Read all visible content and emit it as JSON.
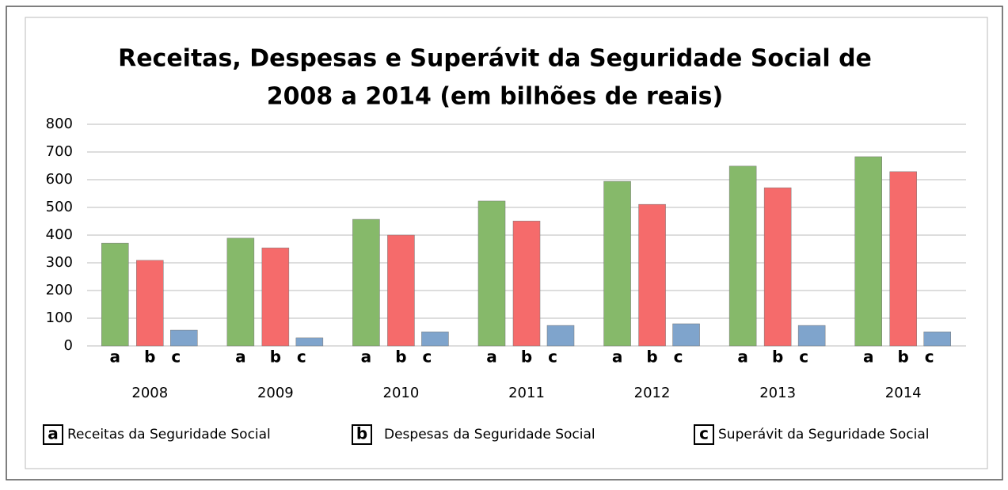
{
  "chart_data": {
    "type": "bar",
    "title": [
      "Receitas, Despesas e Superávit da Seguridade Social de",
      "2008 a 2014 (em bilhões de reais)"
    ],
    "categories": [
      "2008",
      "2009",
      "2010",
      "2011",
      "2012",
      "2013",
      "2014"
    ],
    "series": [
      {
        "name": "Receitas da Seguridade Social",
        "label": "a",
        "color": "#86b96a",
        "values": [
          371,
          389,
          457,
          523,
          594,
          649,
          683
        ]
      },
      {
        "name": "Despesas da Seguridade Social",
        "label": "b",
        "color": "#f56b6b",
        "values": [
          309,
          354,
          400,
          451,
          511,
          571,
          629
        ]
      },
      {
        "name": "Superávit da Seguridade Social",
        "label": "c",
        "color": "#7fa4cc",
        "values": [
          57,
          29,
          51,
          74,
          80,
          74,
          51
        ]
      }
    ],
    "ylim": [
      0,
      800
    ],
    "yticks": [
      0,
      100,
      200,
      300,
      400,
      500,
      600,
      700,
      800
    ],
    "grid": true,
    "legend": "bottom"
  }
}
